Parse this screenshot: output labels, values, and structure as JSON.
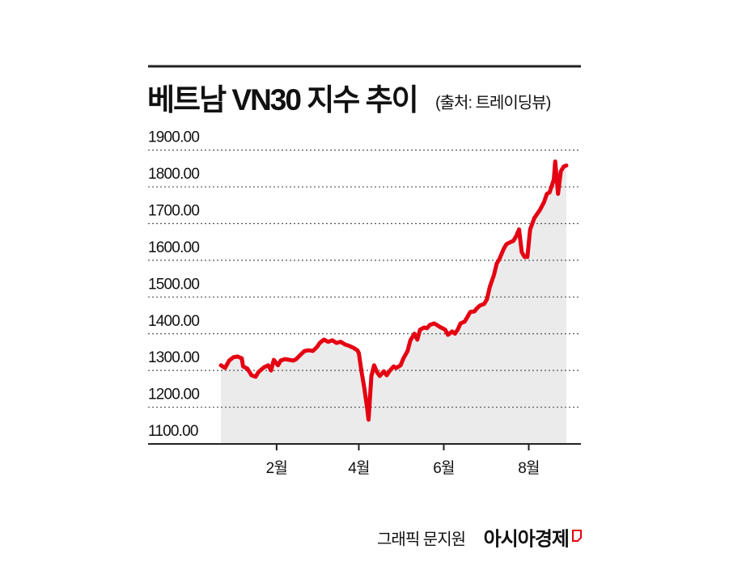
{
  "chart_data": {
    "type": "line",
    "title": "베트남 VN30 지수 추이",
    "subtitle": "(출처: 트레이딩뷰)",
    "credit": "그래픽 문지원",
    "publisher": "아시아경제",
    "color": "#e50012",
    "fill_color": "#ebebeb",
    "grid": true,
    "x": [
      -8,
      -5,
      -2,
      1,
      4,
      7,
      8,
      11,
      14,
      17,
      19,
      23,
      26,
      28,
      30,
      33,
      35,
      38,
      41,
      44,
      46,
      49,
      52,
      55,
      58,
      61,
      63,
      66,
      69,
      72,
      75,
      78,
      81,
      84,
      87,
      90,
      91,
      93,
      95,
      97,
      98,
      100,
      102,
      104,
      106,
      109,
      111,
      113,
      116,
      118,
      121,
      123,
      126,
      128,
      131,
      133,
      135,
      138,
      140,
      142,
      145,
      147,
      149,
      153,
      155,
      158,
      160,
      162,
      164,
      167,
      169,
      171,
      174,
      176,
      178,
      181,
      183,
      185,
      188,
      190,
      192,
      195,
      197,
      199,
      202,
      204,
      206,
      208,
      210,
      212,
      214,
      217,
      219,
      221,
      224,
      226,
      228,
      231,
      232,
      234,
      236,
      238,
      240
    ],
    "values": [
      1314,
      1307,
      1327,
      1336,
      1338,
      1333,
      1311,
      1305,
      1287,
      1283,
      1296,
      1309,
      1314,
      1300,
      1329,
      1314,
      1327,
      1331,
      1329,
      1327,
      1331,
      1342,
      1353,
      1355,
      1353,
      1364,
      1375,
      1384,
      1378,
      1382,
      1375,
      1378,
      1371,
      1367,
      1362,
      1355,
      1347,
      1296,
      1252,
      1197,
      1166,
      1285,
      1314,
      1296,
      1285,
      1298,
      1287,
      1298,
      1311,
      1307,
      1314,
      1333,
      1353,
      1382,
      1400,
      1384,
      1411,
      1417,
      1415,
      1424,
      1428,
      1424,
      1419,
      1411,
      1397,
      1406,
      1400,
      1411,
      1428,
      1433,
      1446,
      1459,
      1461,
      1470,
      1477,
      1481,
      1494,
      1527,
      1560,
      1591,
      1604,
      1631,
      1644,
      1648,
      1653,
      1666,
      1684,
      1622,
      1609,
      1609,
      1684,
      1715,
      1726,
      1737,
      1759,
      1781,
      1785,
      1820,
      1869,
      1781,
      1842,
      1855,
      1858
    ],
    "xlim": [
      -8,
      240
    ],
    "xticks": [
      {
        "value": 32,
        "label": "2월"
      },
      {
        "value": 91,
        "label": "4월"
      },
      {
        "value": 152,
        "label": "6월"
      },
      {
        "value": 213,
        "label": "8월"
      }
    ],
    "ylim": [
      1100,
      1930
    ],
    "yticks": [
      {
        "value": 1100,
        "label": "1100.00"
      },
      {
        "value": 1200,
        "label": "1200.00"
      },
      {
        "value": 1300,
        "label": "1300.00"
      },
      {
        "value": 1400,
        "label": "1400.00"
      },
      {
        "value": 1500,
        "label": "1500.00"
      },
      {
        "value": 1600,
        "label": "1600.00"
      },
      {
        "value": 1700,
        "label": "1700.00"
      },
      {
        "value": 1800,
        "label": "1800.00"
      },
      {
        "value": 1900,
        "label": "1900.00"
      }
    ]
  }
}
